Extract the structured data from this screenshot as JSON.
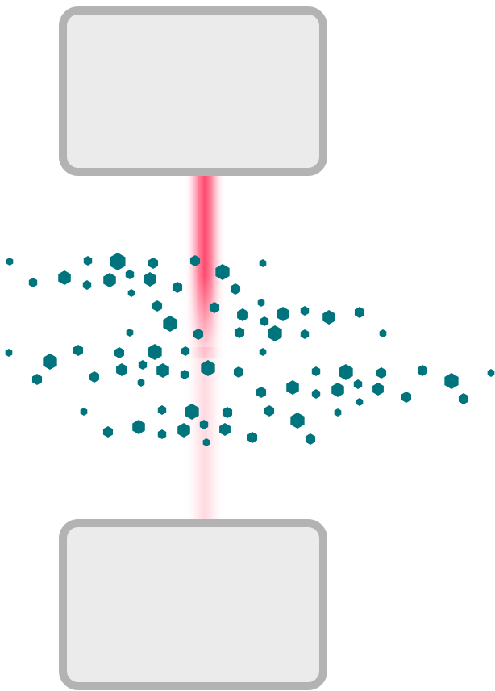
{
  "colors": {
    "background": "#ffffff",
    "box_fill": "#ebebeb",
    "box_border": "#b3b3b3",
    "beam": "#ff5577",
    "particle": "#00747c"
  },
  "components": {
    "top_box": "plain-rounded-rectangle",
    "bottom_box": "plain-rounded-rectangle",
    "beam": "vertical-laser-beam",
    "particles": "scattered-hexagonal-particles"
  }
}
